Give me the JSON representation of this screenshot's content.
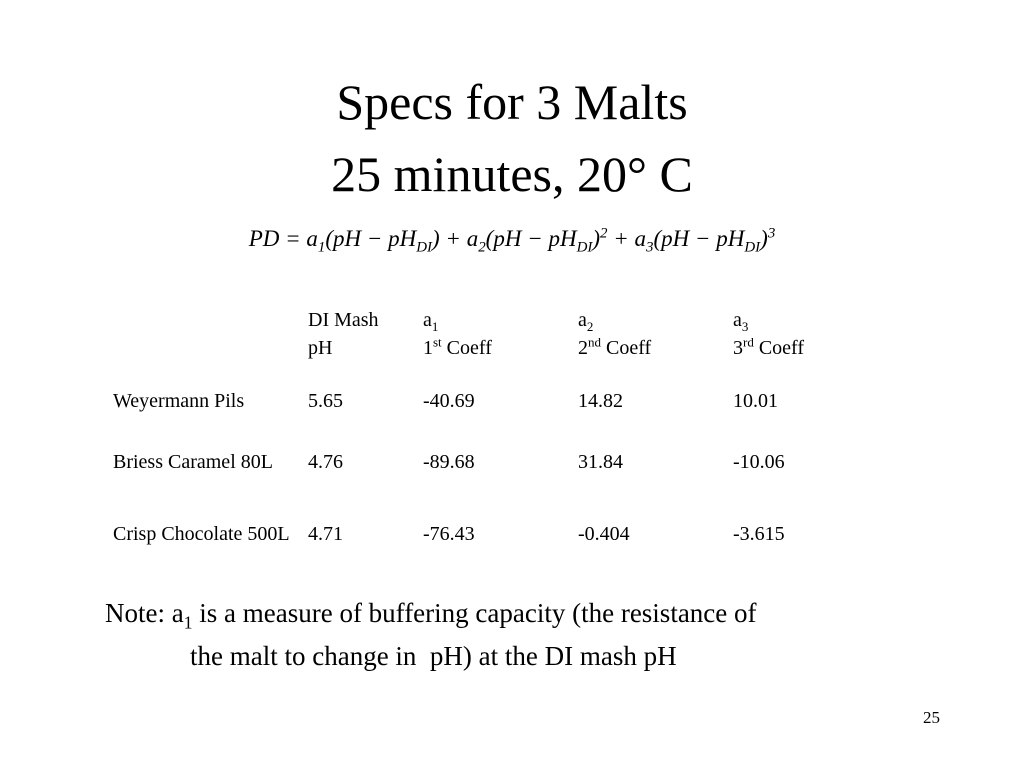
{
  "title": [
    "Specs for 3 Malts",
    "25 minutes, 20°  C"
  ],
  "equation": [
    {
      "text": "PD = a"
    },
    {
      "text": "1",
      "script": "sub"
    },
    {
      "text": "(pH − pH"
    },
    {
      "text": "DI",
      "script": "sub"
    },
    {
      "text": ") + a"
    },
    {
      "text": "2",
      "script": "sub"
    },
    {
      "text": "(pH − pH"
    },
    {
      "text": "DI",
      "script": "sub"
    },
    {
      "text": ")"
    },
    {
      "text": "2",
      "script": "sup"
    },
    {
      "text": " + a"
    },
    {
      "text": "3",
      "script": "sub"
    },
    {
      "text": "(pH − pH"
    },
    {
      "text": "DI",
      "script": "sub"
    },
    {
      "text": ")"
    },
    {
      "text": "3",
      "script": "sup"
    }
  ],
  "table": {
    "header": [
      [],
      [
        [
          {
            "text": "DI Mash"
          }
        ],
        [
          {
            "text": "pH"
          }
        ]
      ],
      [
        [
          {
            "text": "a"
          },
          {
            "text": "1",
            "script": "sub"
          }
        ],
        [
          {
            "text": "1"
          },
          {
            "text": "st",
            "script": "sup"
          },
          {
            "text": " Coeff"
          }
        ]
      ],
      [
        [
          {
            "text": "a"
          },
          {
            "text": "2",
            "script": "sub"
          }
        ],
        [
          {
            "text": "2"
          },
          {
            "text": "nd",
            "script": "sup"
          },
          {
            "text": " Coeff"
          }
        ]
      ],
      [
        [
          {
            "text": "a"
          },
          {
            "text": "3",
            "script": "sub"
          }
        ],
        [
          {
            "text": "3"
          },
          {
            "text": "rd",
            "script": "sup"
          },
          {
            "text": " Coeff"
          }
        ]
      ]
    ],
    "rows": [
      [
        "Weyermann Pils",
        "5.65",
        "-40.69",
        "14.82",
        "10.01"
      ],
      [
        "Briess Caramel 80L",
        "4.76",
        "-89.68",
        "31.84",
        "-10.06"
      ],
      [
        "Crisp Chocolate 500L",
        "4.71",
        "-76.43",
        "-0.404",
        "-3.615"
      ]
    ]
  },
  "note": [
    [
      {
        "text": "Note: a"
      },
      {
        "text": "1",
        "script": "sub"
      },
      {
        "text": " is a measure of buffering capacity (the resistance of"
      }
    ],
    [
      {
        "text": "the malt to change in  pH) at the DI mash pH"
      }
    ]
  ],
  "page_number": "25"
}
